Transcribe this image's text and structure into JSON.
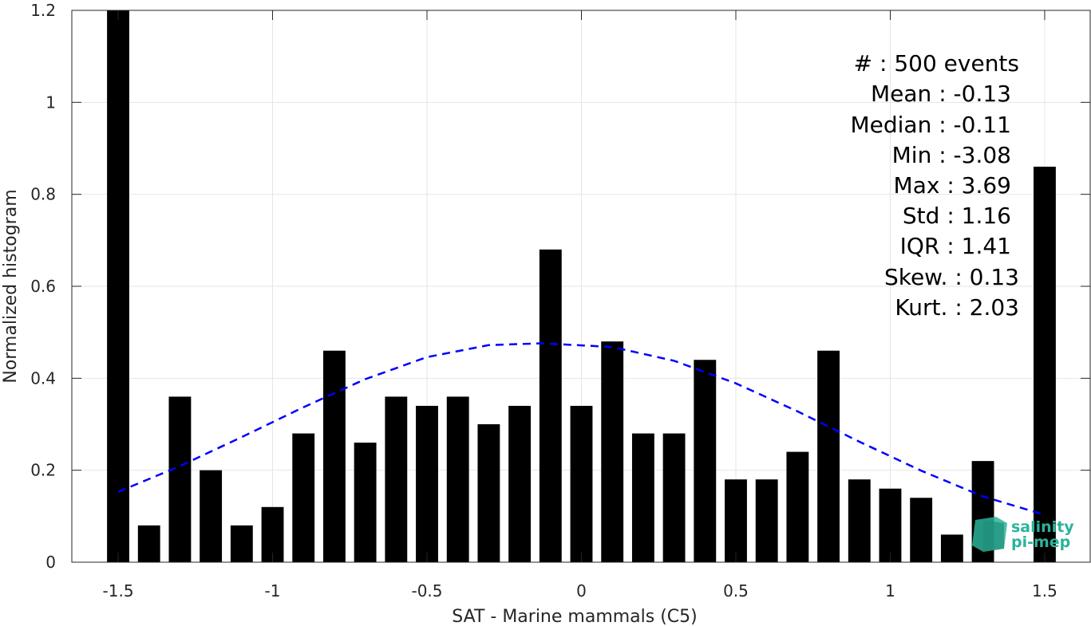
{
  "chart_data": {
    "type": "bar",
    "xlabel": "SAT - Marine mammals (C5)",
    "ylabel": "Normalized histogram",
    "xlim": [
      -1.65,
      1.65
    ],
    "ylim": [
      0,
      1.2
    ],
    "xticks": [
      -1.5,
      -1,
      -0.5,
      0,
      0.5,
      1,
      1.5
    ],
    "xtick_labels": [
      "-1.5",
      "-1",
      "-0.5",
      "0",
      "0.5",
      "1",
      "1.5"
    ],
    "yticks": [
      0,
      0.2,
      0.4,
      0.6,
      0.8,
      1,
      1.2
    ],
    "ytick_labels": [
      "0",
      "0.2",
      "0.4",
      "0.6",
      "0.8",
      "1",
      "1.2"
    ],
    "grid": true,
    "bar_color": "#000000",
    "bin_centers": [
      -1.5,
      -1.4,
      -1.3,
      -1.2,
      -1.1,
      -1.0,
      -0.9,
      -0.8,
      -0.7,
      -0.6,
      -0.5,
      -0.4,
      -0.3,
      -0.2,
      -0.1,
      0.0,
      0.1,
      0.2,
      0.3,
      0.4,
      0.5,
      0.6,
      0.7,
      0.8,
      0.9,
      1.0,
      1.1,
      1.2,
      1.3,
      1.4,
      1.5
    ],
    "values": [
      1.2,
      0.08,
      0.36,
      0.2,
      0.08,
      0.12,
      0.28,
      0.46,
      0.26,
      0.36,
      0.34,
      0.36,
      0.3,
      0.34,
      0.68,
      0.34,
      0.48,
      0.28,
      0.28,
      0.44,
      0.18,
      0.18,
      0.24,
      0.46,
      0.18,
      0.16,
      0.14,
      0.06,
      0.22,
      0.0,
      0.86
    ],
    "fit_curve": {
      "style": "dashed",
      "color": "#0000ff",
      "x": [
        -1.5,
        -1.3,
        -1.1,
        -0.9,
        -0.7,
        -0.5,
        -0.3,
        -0.13,
        0.1,
        0.3,
        0.5,
        0.7,
        0.9,
        1.1,
        1.3,
        1.5
      ],
      "y": [
        0.153,
        0.209,
        0.272,
        0.337,
        0.398,
        0.446,
        0.472,
        0.476,
        0.468,
        0.438,
        0.389,
        0.328,
        0.262,
        0.199,
        0.143,
        0.103
      ]
    }
  },
  "stats": {
    "lines": [
      "#  : 500 events",
      "Mean : -0.13",
      "Median : -0.11",
      "Min : -3.08",
      "Max : 3.69",
      "Std : 1.16",
      "IQR : 1.41",
      "Skew. : 0.13",
      "Kurt. : 2.03"
    ]
  },
  "logo": {
    "line1": "salinity",
    "line2": "pi-mep",
    "color": "#2bb39a"
  }
}
